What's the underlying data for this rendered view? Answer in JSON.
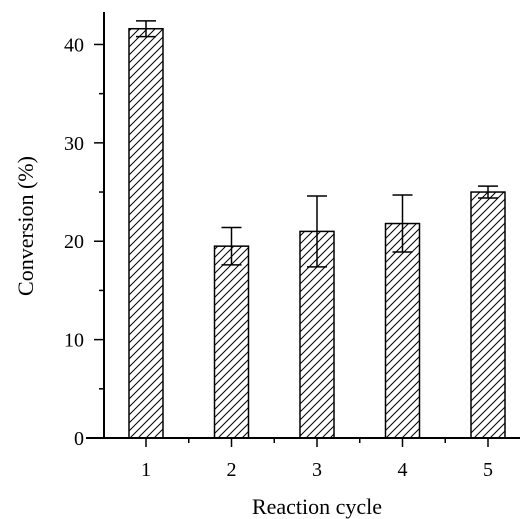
{
  "chart_data": {
    "type": "bar",
    "xlabel": "Reaction cycle",
    "ylabel": "Conversion (%)",
    "categories": [
      "1",
      "2",
      "3",
      "4",
      "5"
    ],
    "values": [
      41.6,
      19.5,
      21.0,
      21.8,
      25.0
    ],
    "error_low": [
      40.8,
      17.6,
      17.4,
      18.9,
      24.4
    ],
    "error_high": [
      42.4,
      21.4,
      24.6,
      24.7,
      25.6
    ],
    "ylim": [
      0,
      43.3
    ],
    "yticks": [
      0,
      10,
      20,
      30,
      40
    ],
    "fill": "diagonal hatch",
    "grid": false,
    "colors": {
      "stroke": "#000000",
      "background": "#ffffff"
    }
  }
}
